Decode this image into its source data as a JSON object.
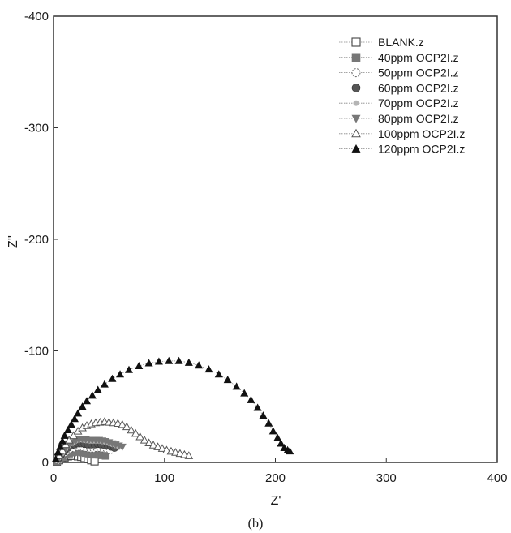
{
  "chart_data": {
    "type": "scatter",
    "title": "",
    "xlabel": "Z'",
    "ylabel": "Z''",
    "caption": "(b)",
    "xlim": [
      0,
      400
    ],
    "ylim": [
      0,
      -400
    ],
    "xticks": [
      "0",
      "100",
      "200",
      "300",
      "400"
    ],
    "yticks": [
      "0",
      "-100",
      "-200",
      "-300",
      "-400"
    ],
    "grid": false,
    "legend_position": "top-right",
    "series": [
      {
        "name": "BLANK.z",
        "marker": "square-open",
        "color": "#444444",
        "points": [
          [
            3,
            -0.5
          ],
          [
            5,
            -2
          ],
          [
            7,
            -3.5
          ],
          [
            10,
            -4.5
          ],
          [
            13,
            -5.5
          ],
          [
            16,
            -6
          ],
          [
            19,
            -6
          ],
          [
            22,
            -5.5
          ],
          [
            25,
            -5
          ],
          [
            28,
            -4
          ],
          [
            31,
            -3
          ],
          [
            34,
            -2
          ],
          [
            37,
            -1
          ]
        ]
      },
      {
        "name": "40ppm OCP2I.z",
        "marker": "square-filled",
        "color": "#777777",
        "points": [
          [
            3,
            -1
          ],
          [
            5,
            -3
          ],
          [
            8,
            -5
          ],
          [
            11,
            -7
          ],
          [
            14,
            -8
          ],
          [
            17,
            -9
          ],
          [
            20,
            -9.5
          ],
          [
            23,
            -9.5
          ],
          [
            26,
            -9
          ],
          [
            29,
            -8.5
          ],
          [
            32,
            -8
          ],
          [
            35,
            -7.5
          ],
          [
            38,
            -7
          ],
          [
            41,
            -7
          ],
          [
            44,
            -6.5
          ],
          [
            47,
            -6
          ]
        ]
      },
      {
        "name": "50ppm OCP2I.z",
        "marker": "circle-open",
        "color": "#666666",
        "points": [
          [
            4,
            -2
          ],
          [
            6,
            -5
          ],
          [
            9,
            -8
          ],
          [
            12,
            -10
          ],
          [
            15,
            -12
          ],
          [
            18,
            -13
          ],
          [
            21,
            -14
          ],
          [
            24,
            -14
          ],
          [
            27,
            -13.5
          ],
          [
            30,
            -13
          ],
          [
            33,
            -12.5
          ],
          [
            36,
            -12.5
          ],
          [
            39,
            -13
          ],
          [
            42,
            -13
          ],
          [
            45,
            -12.5
          ],
          [
            48,
            -12
          ],
          [
            51,
            -11
          ]
        ]
      },
      {
        "name": "60ppm OCP2I.z",
        "marker": "circle-filled",
        "color": "#555555",
        "points": [
          [
            4,
            -3
          ],
          [
            7,
            -7
          ],
          [
            10,
            -10
          ],
          [
            13,
            -13
          ],
          [
            16,
            -15
          ],
          [
            19,
            -16
          ],
          [
            22,
            -17
          ],
          [
            25,
            -17
          ],
          [
            28,
            -16.5
          ],
          [
            31,
            -16
          ],
          [
            34,
            -16
          ],
          [
            37,
            -16
          ],
          [
            40,
            -16.5
          ],
          [
            43,
            -16
          ],
          [
            46,
            -15.5
          ],
          [
            49,
            -15
          ],
          [
            52,
            -14
          ],
          [
            55,
            -13
          ]
        ]
      },
      {
        "name": "70ppm OCP2I.z",
        "marker": "dot-light",
        "color": "#b5b5b5",
        "points": [
          [
            5,
            -4
          ],
          [
            8,
            -8
          ],
          [
            11,
            -12
          ],
          [
            14,
            -15
          ],
          [
            17,
            -17
          ],
          [
            20,
            -19
          ],
          [
            23,
            -20
          ],
          [
            26,
            -20
          ],
          [
            29,
            -19.5
          ],
          [
            32,
            -19
          ],
          [
            35,
            -19
          ],
          [
            38,
            -19
          ],
          [
            41,
            -19
          ],
          [
            44,
            -18.5
          ],
          [
            47,
            -18
          ],
          [
            50,
            -17
          ],
          [
            53,
            -16
          ],
          [
            56,
            -15
          ],
          [
            59,
            -13.5
          ]
        ]
      },
      {
        "name": "80ppm OCP2I.z",
        "marker": "triangle-down-filled",
        "color": "#777777",
        "points": [
          [
            5,
            -5
          ],
          [
            8,
            -9
          ],
          [
            11,
            -13
          ],
          [
            14,
            -16
          ],
          [
            17,
            -18
          ],
          [
            20,
            -19.5
          ],
          [
            23,
            -20.5
          ],
          [
            26,
            -21
          ],
          [
            29,
            -20.5
          ],
          [
            32,
            -20
          ],
          [
            35,
            -20
          ],
          [
            38,
            -20
          ],
          [
            41,
            -20
          ],
          [
            44,
            -19.5
          ],
          [
            47,
            -19
          ],
          [
            50,
            -18
          ],
          [
            53,
            -17
          ],
          [
            56,
            -16
          ],
          [
            59,
            -15
          ],
          [
            62,
            -14
          ]
        ]
      },
      {
        "name": "100ppm OCP2I.z",
        "marker": "triangle-up-open",
        "color": "#555555",
        "points": [
          [
            5,
            -6
          ],
          [
            8,
            -11
          ],
          [
            11,
            -16
          ],
          [
            14,
            -20
          ],
          [
            18,
            -24
          ],
          [
            22,
            -28
          ],
          [
            26,
            -31
          ],
          [
            30,
            -33
          ],
          [
            34,
            -34.5
          ],
          [
            38,
            -35.5
          ],
          [
            42,
            -36
          ],
          [
            46,
            -36.5
          ],
          [
            50,
            -36
          ],
          [
            54,
            -35.5
          ],
          [
            58,
            -35
          ],
          [
            62,
            -34
          ],
          [
            66,
            -32
          ],
          [
            70,
            -29
          ],
          [
            74,
            -26
          ],
          [
            78,
            -23
          ],
          [
            82,
            -20
          ],
          [
            86,
            -17.5
          ],
          [
            90,
            -15.5
          ],
          [
            94,
            -14
          ],
          [
            98,
            -12.5
          ],
          [
            102,
            -11
          ],
          [
            106,
            -10
          ],
          [
            110,
            -9
          ],
          [
            114,
            -8
          ],
          [
            118,
            -7
          ],
          [
            122,
            -6
          ]
        ]
      },
      {
        "name": "120ppm OCP2I.z",
        "marker": "triangle-up-filled",
        "color": "#111111",
        "points": [
          [
            2,
            -3
          ],
          [
            4,
            -9
          ],
          [
            6,
            -14
          ],
          [
            8,
            -19
          ],
          [
            10,
            -24
          ],
          [
            13,
            -29
          ],
          [
            16,
            -34
          ],
          [
            19,
            -39
          ],
          [
            22,
            -44
          ],
          [
            26,
            -50
          ],
          [
            30,
            -55
          ],
          [
            35,
            -60
          ],
          [
            40,
            -65
          ],
          [
            46,
            -70
          ],
          [
            53,
            -75
          ],
          [
            60,
            -79
          ],
          [
            68,
            -83
          ],
          [
            77,
            -86.5
          ],
          [
            86,
            -89
          ],
          [
            95,
            -90.5
          ],
          [
            104,
            -91
          ],
          [
            113,
            -91
          ],
          [
            122,
            -89.5
          ],
          [
            131,
            -87
          ],
          [
            140,
            -83.5
          ],
          [
            149,
            -79
          ],
          [
            157,
            -74
          ],
          [
            165,
            -68
          ],
          [
            172,
            -62
          ],
          [
            178,
            -56
          ],
          [
            184,
            -49
          ],
          [
            189,
            -42
          ],
          [
            194,
            -35
          ],
          [
            198,
            -28
          ],
          [
            202,
            -22
          ],
          [
            205,
            -17
          ],
          [
            208,
            -13
          ],
          [
            211,
            -11
          ],
          [
            213,
            -10
          ]
        ]
      }
    ]
  }
}
